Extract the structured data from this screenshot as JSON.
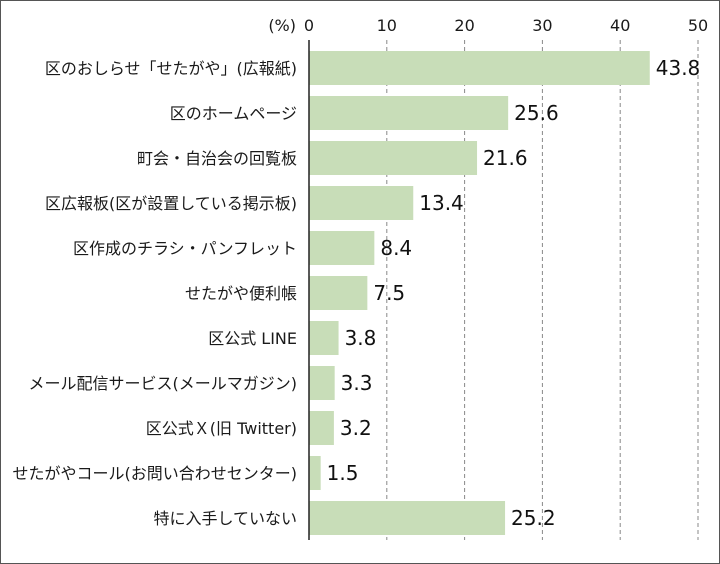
{
  "chart_data": {
    "type": "bar",
    "orientation": "horizontal",
    "unit_label": "(%)",
    "title": "",
    "xlabel": "",
    "ylabel": "",
    "xlim": [
      0,
      50
    ],
    "ticks": [
      0,
      10,
      20,
      30,
      40,
      50
    ],
    "tick_labels": [
      "0",
      "10",
      "20",
      "30",
      "40",
      "50"
    ],
    "grid": true,
    "bar_color": "#c8ddb8",
    "grid_color": "#888888",
    "categories": [
      "区のおしらせ「せたがや」(広報紙)",
      "区のホームページ",
      "町会・自治会の回覧板",
      "区広報板(区が設置している掲示板)",
      "区作成のチラシ・パンフレット",
      "せたがや便利帳",
      "区公式 LINE",
      "メール配信サービス(メールマガジン)",
      "区公式Ｘ(旧 Twitter)",
      "せたがやコール(お問い合わせセンター)",
      "特に入手していない"
    ],
    "values": [
      43.8,
      25.6,
      21.6,
      13.4,
      8.4,
      7.5,
      3.8,
      3.3,
      3.2,
      1.5,
      25.2
    ],
    "value_labels": [
      "43.8",
      "25.6",
      "21.6",
      "13.4",
      "8.4",
      "7.5",
      "3.8",
      "3.3",
      "3.2",
      "1.5",
      "25.2"
    ]
  }
}
